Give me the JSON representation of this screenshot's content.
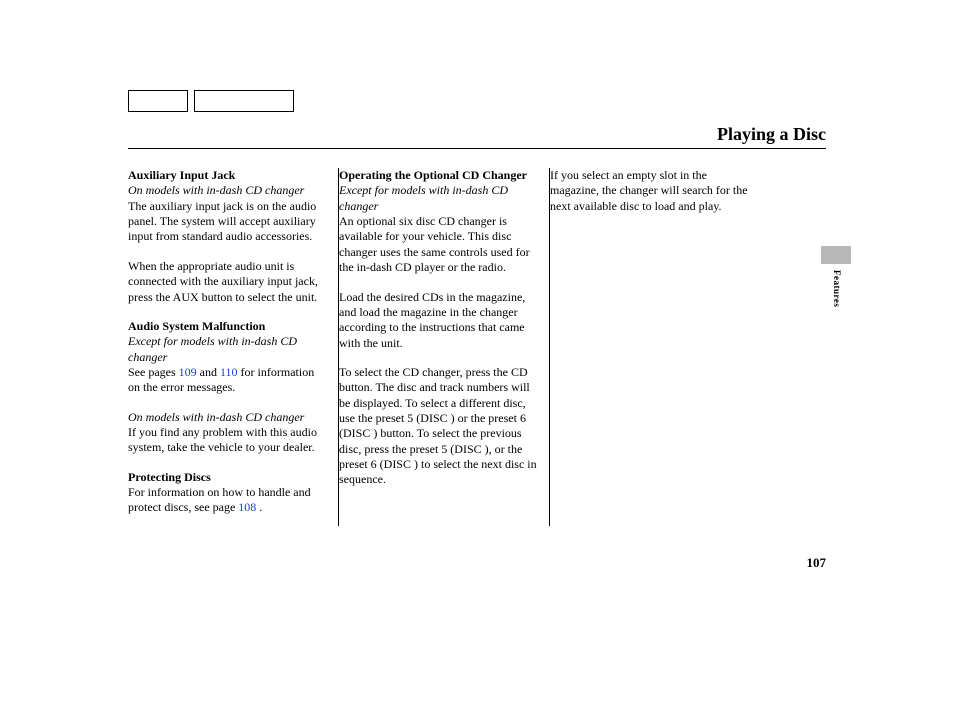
{
  "page": {
    "title": "Playing a Disc",
    "number": "107"
  },
  "side": {
    "label": "Features"
  },
  "col1": {
    "s1_head": "Auxiliary Input Jack",
    "s1_note": "On models with in-dash CD changer",
    "s1_p1": "The auxiliary input jack is on the audio panel. The system will accept auxiliary input from standard audio accessories.",
    "s1_p2": "When the appropriate audio unit is connected with the auxiliary input jack, press the AUX button to select the unit.",
    "s2_head": "Audio System Malfunction",
    "s2_note": "Except for models with in-dash CD changer",
    "s2_p1_a": "See pages ",
    "s2_p1_link1": "109",
    "s2_p1_b": " and ",
    "s2_p1_link2": "110",
    "s2_p1_c": " for information on the error messages.",
    "s2_note2": "On models with in-dash CD changer",
    "s2_p2": "If you find any problem with this audio system, take the vehicle to your dealer.",
    "s3_head": "Protecting Discs",
    "s3_p1_a": "For information on how to handle and protect discs, see page ",
    "s3_p1_link": "108",
    "s3_p1_b": " ."
  },
  "col2": {
    "s1_head": "Operating the Optional CD Changer",
    "s1_note": "Except for models with in-dash CD changer",
    "s1_p1": "An optional six disc CD changer is available for your vehicle. This disc changer uses the same controls used for the in-dash CD player or the radio.",
    "s1_p2": "Load the desired CDs in the magazine, and load the magazine in the changer according to the instructions that came with the unit.",
    "s1_p3": "To select the CD changer, press the CD button. The disc and track numbers will be displayed. To select a different disc, use the preset 5 (DISC     ) or the preset 6 (DISC     ) button. To select the previous disc, press the preset 5 (DISC     ), or the preset 6 (DISC     ) to select the next disc in sequence."
  },
  "col3": {
    "p1": "If you select an empty slot in the magazine, the changer will search for the next available disc to load and play."
  }
}
